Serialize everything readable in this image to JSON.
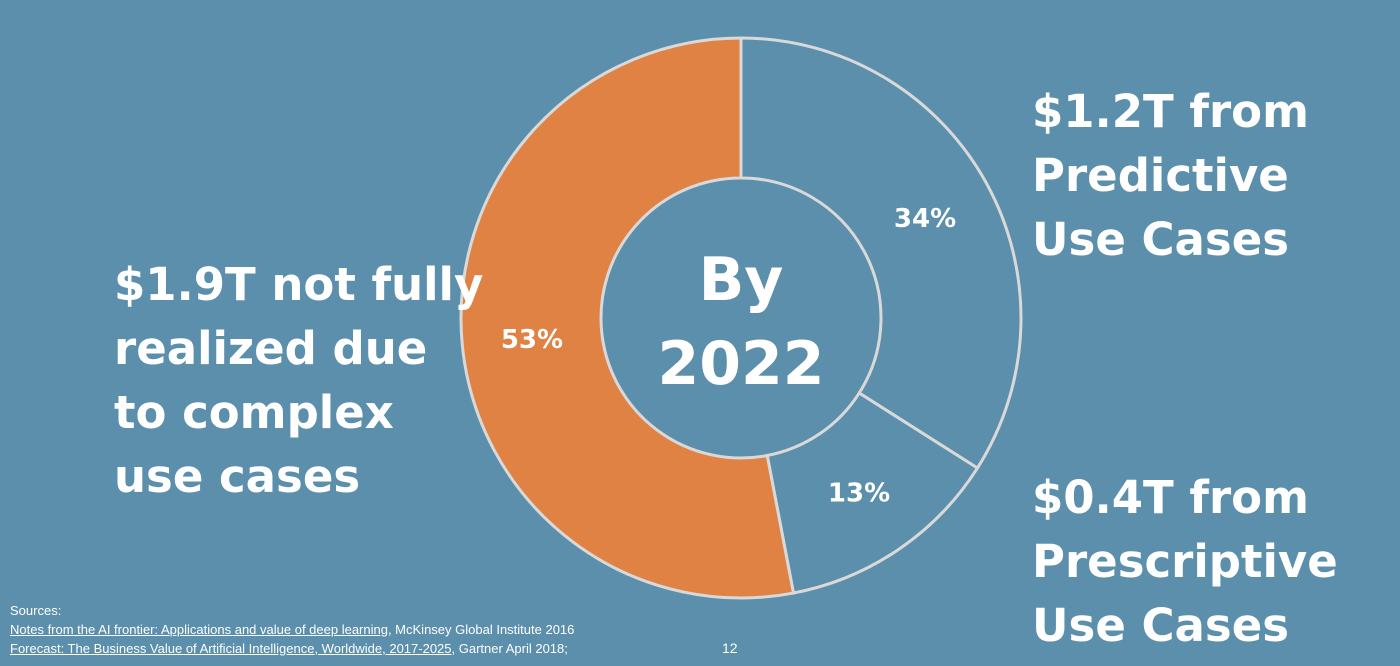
{
  "slide": {
    "background": "#5b8fab",
    "page_number": "12"
  },
  "chart_data": {
    "type": "pie",
    "donut": true,
    "center_text": [
      "By",
      "2022"
    ],
    "slices": [
      {
        "value": 34,
        "label": "34%",
        "color": "#5b8fab"
      },
      {
        "value": 13,
        "label": "13%",
        "color": "#5b8fab"
      },
      {
        "value": 53,
        "label": "53%",
        "color": "#e08244"
      }
    ],
    "border_color": "#d9d9d9"
  },
  "labels": {
    "left": [
      "$1.9T not fully",
      "realized due",
      "to complex",
      "use cases"
    ],
    "predictive": [
      "$1.2T from",
      "Predictive",
      "Use Cases"
    ],
    "prescriptive": [
      "$0.4T from",
      "Prescriptive",
      "Use Cases"
    ]
  },
  "sources": {
    "heading": "Sources:",
    "line1_link": "Notes from the AI frontier: Applications and value of deep learning",
    "line1_rest": ", McKinsey Global Institute 2016",
    "line2_link": "Forecast: The Business Value of Artificial Intelligence, Worldwide, 2017-2025",
    "line2_rest": ", Gartner April 2018;"
  }
}
